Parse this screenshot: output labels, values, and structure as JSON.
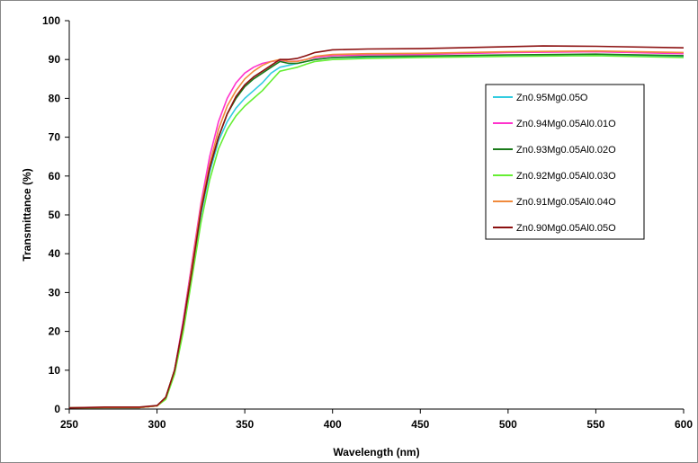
{
  "chart_data": {
    "type": "line",
    "title": "",
    "xlabel": "Wavelength (nm)",
    "ylabel": "Transmittance (%)",
    "xlim": [
      250,
      600
    ],
    "ylim": [
      0,
      100
    ],
    "x_ticks": [
      250,
      300,
      350,
      400,
      450,
      500,
      550,
      600
    ],
    "y_ticks": [
      0,
      10,
      20,
      30,
      40,
      50,
      60,
      70,
      80,
      90,
      100
    ],
    "grid": false,
    "legend_position": "right",
    "series": [
      {
        "name": "Zn0.95Mg0.05O",
        "color": "#33CCE0",
        "points": [
          [
            250,
            0.3
          ],
          [
            270,
            0.4
          ],
          [
            290,
            0.4
          ],
          [
            300,
            0.8
          ],
          [
            305,
            3
          ],
          [
            310,
            10
          ],
          [
            315,
            22
          ],
          [
            320,
            36
          ],
          [
            325,
            50
          ],
          [
            330,
            61
          ],
          [
            335,
            69
          ],
          [
            340,
            74
          ],
          [
            345,
            77.5
          ],
          [
            350,
            80
          ],
          [
            355,
            82
          ],
          [
            360,
            84
          ],
          [
            365,
            86.5
          ],
          [
            370,
            88
          ],
          [
            375,
            88.5
          ],
          [
            380,
            89
          ],
          [
            385,
            89.5
          ],
          [
            390,
            90
          ],
          [
            400,
            90.5
          ],
          [
            420,
            90.6
          ],
          [
            450,
            90.7
          ],
          [
            500,
            91
          ],
          [
            550,
            91.2
          ],
          [
            600,
            90.8
          ]
        ]
      },
      {
        "name": "Zn0.94Mg0.05Al0.01O",
        "color": "#FF33CC",
        "points": [
          [
            250,
            0.3
          ],
          [
            270,
            0.4
          ],
          [
            290,
            0.4
          ],
          [
            300,
            0.8
          ],
          [
            305,
            3
          ],
          [
            310,
            10
          ],
          [
            315,
            23
          ],
          [
            320,
            38
          ],
          [
            325,
            53
          ],
          [
            330,
            65
          ],
          [
            335,
            74
          ],
          [
            340,
            80
          ],
          [
            345,
            84
          ],
          [
            350,
            86.5
          ],
          [
            355,
            88
          ],
          [
            360,
            89
          ],
          [
            365,
            89.5
          ],
          [
            370,
            89.8
          ],
          [
            375,
            89.5
          ],
          [
            380,
            89.6
          ],
          [
            385,
            90
          ],
          [
            390,
            90.5
          ],
          [
            400,
            91
          ],
          [
            420,
            91.2
          ],
          [
            450,
            91.3
          ],
          [
            500,
            91.8
          ],
          [
            550,
            92
          ],
          [
            600,
            91.5
          ]
        ]
      },
      {
        "name": "Zn0.93Mg0.05Al0.02O",
        "color": "#1A7A1A",
        "points": [
          [
            250,
            0.3
          ],
          [
            270,
            0.4
          ],
          [
            290,
            0.4
          ],
          [
            300,
            0.8
          ],
          [
            305,
            3
          ],
          [
            310,
            10
          ],
          [
            315,
            22
          ],
          [
            320,
            37
          ],
          [
            325,
            51
          ],
          [
            330,
            62
          ],
          [
            335,
            70
          ],
          [
            340,
            76
          ],
          [
            345,
            80
          ],
          [
            350,
            83
          ],
          [
            355,
            85
          ],
          [
            360,
            86.5
          ],
          [
            365,
            88
          ],
          [
            370,
            89.5
          ],
          [
            375,
            89
          ],
          [
            380,
            89
          ],
          [
            385,
            89.5
          ],
          [
            390,
            90
          ],
          [
            400,
            90.5
          ],
          [
            420,
            90.8
          ],
          [
            450,
            90.9
          ],
          [
            500,
            91.2
          ],
          [
            550,
            91.4
          ],
          [
            600,
            91
          ]
        ]
      },
      {
        "name": "Zn0.92Mg0.05Al0.03O",
        "color": "#66EE33",
        "points": [
          [
            250,
            0.3
          ],
          [
            270,
            0.4
          ],
          [
            290,
            0.4
          ],
          [
            300,
            0.8
          ],
          [
            305,
            2.5
          ],
          [
            310,
            9
          ],
          [
            315,
            20
          ],
          [
            320,
            34
          ],
          [
            325,
            48
          ],
          [
            330,
            59
          ],
          [
            335,
            67
          ],
          [
            340,
            72
          ],
          [
            345,
            75.5
          ],
          [
            350,
            78
          ],
          [
            355,
            80
          ],
          [
            360,
            82
          ],
          [
            365,
            84.5
          ],
          [
            370,
            87
          ],
          [
            375,
            87.5
          ],
          [
            380,
            88
          ],
          [
            385,
            88.8
          ],
          [
            390,
            89.5
          ],
          [
            400,
            90
          ],
          [
            420,
            90.3
          ],
          [
            450,
            90.5
          ],
          [
            500,
            90.8
          ],
          [
            550,
            91
          ],
          [
            600,
            90.5
          ]
        ]
      },
      {
        "name": "Zn0.91Mg0.05Al0.04O",
        "color": "#F08A3C",
        "points": [
          [
            250,
            0.3
          ],
          [
            270,
            0.4
          ],
          [
            290,
            0.4
          ],
          [
            300,
            0.8
          ],
          [
            305,
            3
          ],
          [
            310,
            10
          ],
          [
            315,
            22
          ],
          [
            320,
            37
          ],
          [
            325,
            52
          ],
          [
            330,
            63
          ],
          [
            335,
            72
          ],
          [
            340,
            78
          ],
          [
            345,
            82
          ],
          [
            350,
            85
          ],
          [
            355,
            87
          ],
          [
            360,
            88.5
          ],
          [
            365,
            89.5
          ],
          [
            370,
            90
          ],
          [
            375,
            89.5
          ],
          [
            380,
            89.5
          ],
          [
            385,
            90
          ],
          [
            390,
            90.8
          ],
          [
            400,
            91.3
          ],
          [
            420,
            91.5
          ],
          [
            450,
            91.6
          ],
          [
            500,
            92
          ],
          [
            550,
            92.2
          ],
          [
            600,
            91.8
          ]
        ]
      },
      {
        "name": "Zn0.90Mg0.05Al0.05O",
        "color": "#8B1010",
        "points": [
          [
            250,
            0.3
          ],
          [
            270,
            0.5
          ],
          [
            290,
            0.5
          ],
          [
            300,
            0.9
          ],
          [
            305,
            3
          ],
          [
            310,
            10
          ],
          [
            315,
            22
          ],
          [
            320,
            36
          ],
          [
            325,
            51
          ],
          [
            330,
            62
          ],
          [
            335,
            70
          ],
          [
            340,
            76
          ],
          [
            345,
            80.5
          ],
          [
            350,
            83.5
          ],
          [
            355,
            85.5
          ],
          [
            360,
            87
          ],
          [
            365,
            88.5
          ],
          [
            370,
            90
          ],
          [
            375,
            90
          ],
          [
            380,
            90.3
          ],
          [
            385,
            91
          ],
          [
            390,
            91.8
          ],
          [
            400,
            92.5
          ],
          [
            420,
            92.7
          ],
          [
            450,
            92.8
          ],
          [
            500,
            93.3
          ],
          [
            520,
            93.5
          ],
          [
            550,
            93.4
          ],
          [
            600,
            93
          ]
        ]
      }
    ]
  }
}
